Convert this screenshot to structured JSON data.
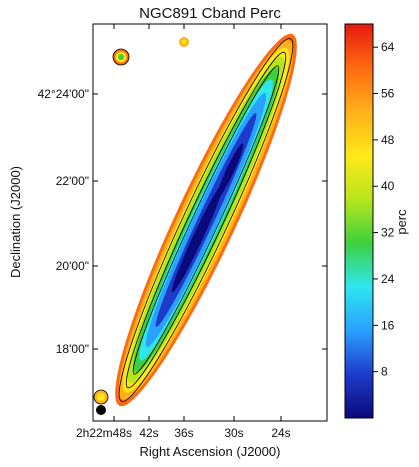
{
  "chart_data": {
    "type": "heatmap",
    "title": "NGC891  Cband  Perc",
    "xlabel": "Right Ascension (J2000)",
    "ylabel": "Declination (J2000)",
    "x_ticks": [
      "2h22m48s",
      "42s",
      "36s",
      "30s",
      "24s"
    ],
    "y_ticks": [
      "42°24'00\"",
      "22'00\"",
      "20'00\"",
      "18'00\""
    ],
    "colorbar": {
      "label": "perc",
      "ticks": [
        8,
        16,
        24,
        32,
        40,
        48,
        56,
        64
      ],
      "range": [
        0,
        68
      ],
      "colormap": [
        "#0a0a7a",
        "#1e3ccc",
        "#2aa0ff",
        "#2ee6ee",
        "#3ecf3e",
        "#b8e61a",
        "#ffe81a",
        "#ffb01a",
        "#ff6a10",
        "#e61a10"
      ]
    },
    "contours": 3,
    "grid": false
  }
}
